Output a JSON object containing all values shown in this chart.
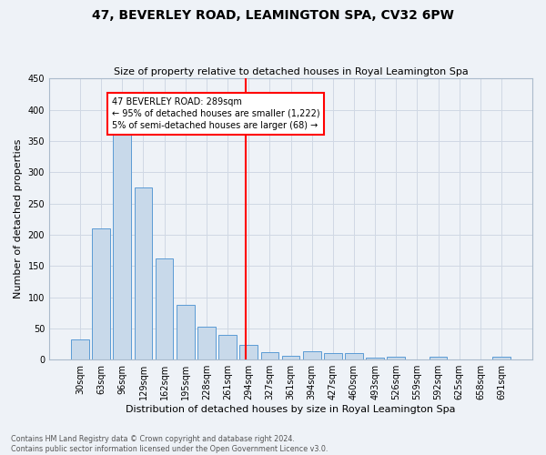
{
  "title": "47, BEVERLEY ROAD, LEAMINGTON SPA, CV32 6PW",
  "subtitle": "Size of property relative to detached houses in Royal Leamington Spa",
  "xlabel": "Distribution of detached houses by size in Royal Leamington Spa",
  "ylabel": "Number of detached properties",
  "footer_line1": "Contains HM Land Registry data © Crown copyright and database right 2024.",
  "footer_line2": "Contains public sector information licensed under the Open Government Licence v3.0.",
  "bar_labels": [
    "30sqm",
    "63sqm",
    "96sqm",
    "129sqm",
    "162sqm",
    "195sqm",
    "228sqm",
    "261sqm",
    "294sqm",
    "327sqm",
    "361sqm",
    "394sqm",
    "427sqm",
    "460sqm",
    "493sqm",
    "526sqm",
    "559sqm",
    "592sqm",
    "625sqm",
    "658sqm",
    "691sqm"
  ],
  "bar_values": [
    32,
    210,
    378,
    275,
    162,
    88,
    53,
    40,
    24,
    12,
    6,
    13,
    11,
    10,
    3,
    5,
    0,
    4,
    0,
    0,
    4
  ],
  "bar_color": "#c8d9ea",
  "bar_edge_color": "#5b9bd5",
  "annotation_box_text": "47 BEVERLEY ROAD: 289sqm\n← 95% of detached houses are smaller (1,222)\n5% of semi-detached houses are larger (68) →",
  "annotation_box_edge_color": "red",
  "vline_color": "red",
  "grid_color": "#d0d8e4",
  "background_color": "#eef2f7",
  "ylim": [
    0,
    450
  ],
  "yticks": [
    0,
    50,
    100,
    150,
    200,
    250,
    300,
    350,
    400,
    450
  ],
  "title_fontsize": 10,
  "subtitle_fontsize": 8,
  "ylabel_fontsize": 8,
  "xlabel_fontsize": 8,
  "tick_fontsize": 7,
  "footer_fontsize": 5.8
}
